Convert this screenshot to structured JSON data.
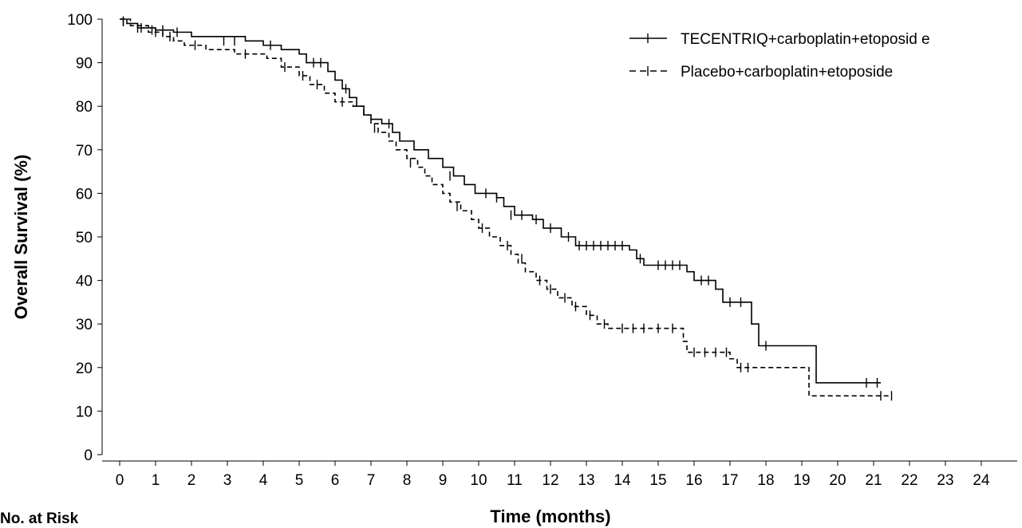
{
  "chart_data": {
    "type": "line",
    "xlabel": "Time (months)",
    "ylabel": "Overall Survival (%)",
    "xlim": [
      0,
      24
    ],
    "ylim": [
      0,
      100
    ],
    "xticks": [
      0,
      1,
      2,
      3,
      4,
      5,
      6,
      7,
      8,
      9,
      10,
      11,
      12,
      13,
      14,
      15,
      16,
      17,
      18,
      19,
      20,
      21,
      22,
      23,
      24
    ],
    "yticks": [
      0,
      10,
      20,
      30,
      40,
      50,
      60,
      70,
      80,
      90,
      100
    ],
    "grid": false,
    "legend_position": "top-right",
    "series": [
      {
        "name": "TECENTRIQ+carboplatin+etoposid e",
        "style": "solid",
        "color": "#000000",
        "steps": [
          [
            0,
            100
          ],
          [
            0.2,
            99
          ],
          [
            0.5,
            98
          ],
          [
            1.0,
            97.5
          ],
          [
            1.5,
            97
          ],
          [
            2.0,
            96
          ],
          [
            3.5,
            95
          ],
          [
            4.0,
            94
          ],
          [
            4.5,
            93
          ],
          [
            5.0,
            92
          ],
          [
            5.2,
            90
          ],
          [
            5.8,
            88
          ],
          [
            6.0,
            86
          ],
          [
            6.2,
            84
          ],
          [
            6.4,
            82
          ],
          [
            6.6,
            80
          ],
          [
            6.8,
            78
          ],
          [
            7.0,
            77
          ],
          [
            7.3,
            76
          ],
          [
            7.6,
            74
          ],
          [
            7.8,
            72
          ],
          [
            8.2,
            70
          ],
          [
            8.6,
            68
          ],
          [
            9.0,
            66
          ],
          [
            9.3,
            64
          ],
          [
            9.6,
            62
          ],
          [
            9.9,
            60
          ],
          [
            10.5,
            59
          ],
          [
            10.7,
            57
          ],
          [
            11.0,
            55
          ],
          [
            11.5,
            54
          ],
          [
            11.8,
            52
          ],
          [
            12.3,
            50
          ],
          [
            12.7,
            48
          ],
          [
            14.2,
            47
          ],
          [
            14.4,
            45
          ],
          [
            14.6,
            43.5
          ],
          [
            15.8,
            42
          ],
          [
            16.0,
            40
          ],
          [
            16.6,
            38
          ],
          [
            16.8,
            35
          ],
          [
            17.6,
            30
          ],
          [
            17.8,
            25
          ],
          [
            19.4,
            16.5
          ],
          [
            21.2,
            16.5
          ]
        ],
        "censored": [
          [
            0.1,
            99.5
          ],
          [
            0.6,
            98
          ],
          [
            0.9,
            97.5
          ],
          [
            1.2,
            97.5
          ],
          [
            1.6,
            97
          ],
          [
            2.9,
            95
          ],
          [
            3.2,
            95
          ],
          [
            4.2,
            94
          ],
          [
            5.4,
            90
          ],
          [
            5.6,
            90
          ],
          [
            6.3,
            84
          ],
          [
            7.5,
            76
          ],
          [
            9.2,
            64
          ],
          [
            10.2,
            60
          ],
          [
            10.5,
            59
          ],
          [
            10.9,
            55
          ],
          [
            11.2,
            55
          ],
          [
            11.6,
            54
          ],
          [
            12.0,
            52
          ],
          [
            12.5,
            50
          ],
          [
            12.8,
            48
          ],
          [
            13.0,
            48
          ],
          [
            13.2,
            48
          ],
          [
            13.4,
            48
          ],
          [
            13.6,
            48
          ],
          [
            13.8,
            48
          ],
          [
            14.0,
            48
          ],
          [
            14.5,
            45
          ],
          [
            15.0,
            43.5
          ],
          [
            15.2,
            43.5
          ],
          [
            15.4,
            43.5
          ],
          [
            15.6,
            43.5
          ],
          [
            16.2,
            40
          ],
          [
            16.4,
            40
          ],
          [
            17.0,
            35
          ],
          [
            17.3,
            35
          ],
          [
            18.0,
            25
          ],
          [
            20.8,
            16.5
          ],
          [
            21.1,
            16.5
          ]
        ]
      },
      {
        "name": "Placebo+carboplatin+etoposide",
        "style": "dashed",
        "color": "#000000",
        "steps": [
          [
            0,
            100
          ],
          [
            0.3,
            98.5
          ],
          [
            0.8,
            97
          ],
          [
            1.2,
            96
          ],
          [
            1.5,
            95
          ],
          [
            1.8,
            94
          ],
          [
            2.4,
            93
          ],
          [
            3.2,
            92
          ],
          [
            4.1,
            91
          ],
          [
            4.5,
            89
          ],
          [
            5.0,
            87
          ],
          [
            5.3,
            85
          ],
          [
            5.7,
            83
          ],
          [
            6.0,
            81
          ],
          [
            6.5,
            80
          ],
          [
            6.8,
            78
          ],
          [
            7.0,
            76
          ],
          [
            7.2,
            74
          ],
          [
            7.5,
            72
          ],
          [
            7.7,
            70
          ],
          [
            8.0,
            68
          ],
          [
            8.3,
            66
          ],
          [
            8.5,
            64
          ],
          [
            8.7,
            62
          ],
          [
            9.0,
            60
          ],
          [
            9.2,
            58
          ],
          [
            9.5,
            56
          ],
          [
            9.8,
            54
          ],
          [
            10.0,
            52
          ],
          [
            10.3,
            50
          ],
          [
            10.6,
            48
          ],
          [
            10.9,
            46
          ],
          [
            11.1,
            44
          ],
          [
            11.3,
            42
          ],
          [
            11.6,
            40
          ],
          [
            11.9,
            38
          ],
          [
            12.2,
            36
          ],
          [
            12.6,
            34
          ],
          [
            13.0,
            32
          ],
          [
            13.3,
            30
          ],
          [
            13.6,
            29
          ],
          [
            15.7,
            26
          ],
          [
            15.8,
            23.5
          ],
          [
            17.0,
            22
          ],
          [
            17.2,
            20
          ],
          [
            19.2,
            13.5
          ],
          [
            21.5,
            13.5
          ]
        ],
        "censored": [
          [
            0.1,
            99.5
          ],
          [
            0.5,
            98
          ],
          [
            1.0,
            97
          ],
          [
            1.4,
            96
          ],
          [
            2.1,
            94
          ],
          [
            3.5,
            92
          ],
          [
            4.6,
            89
          ],
          [
            5.1,
            87
          ],
          [
            5.5,
            85
          ],
          [
            6.2,
            81
          ],
          [
            7.1,
            75
          ],
          [
            8.1,
            67
          ],
          [
            9.4,
            57
          ],
          [
            10.1,
            52
          ],
          [
            10.8,
            48
          ],
          [
            11.2,
            45
          ],
          [
            11.7,
            40
          ],
          [
            12.0,
            38
          ],
          [
            12.4,
            36
          ],
          [
            12.7,
            34
          ],
          [
            13.1,
            32
          ],
          [
            13.5,
            30
          ],
          [
            14.0,
            29
          ],
          [
            14.3,
            29
          ],
          [
            14.6,
            29
          ],
          [
            15.0,
            29
          ],
          [
            15.4,
            29
          ],
          [
            16.0,
            23.5
          ],
          [
            16.3,
            23.5
          ],
          [
            16.6,
            23.5
          ],
          [
            16.9,
            23.5
          ],
          [
            17.3,
            20
          ],
          [
            17.5,
            20
          ],
          [
            21.2,
            13.5
          ],
          [
            21.5,
            13.5
          ]
        ]
      }
    ]
  },
  "footer": {
    "number_at_risk_label": "No. at Risk"
  }
}
